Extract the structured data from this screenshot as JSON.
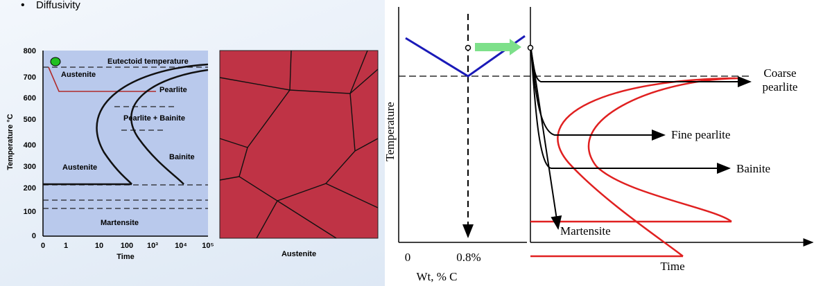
{
  "bullet": "Diffusivity",
  "ttt": {
    "y_label": "Temperature °C",
    "y_ticks": [
      "800",
      "700",
      "600",
      "500",
      "400",
      "300",
      "200",
      "100",
      "0"
    ],
    "x_label": "Time",
    "x_ticks": [
      "0",
      "1",
      "10",
      "100",
      "10³",
      "10⁴",
      "10⁵"
    ],
    "regions": [
      "Eutectoid temperature",
      "Austenite",
      "Pearlite",
      "Pearlite + Bainite",
      "Bainite",
      "Austenite",
      "Martensite"
    ]
  },
  "micrograph": {
    "caption": "Austenite"
  },
  "cct": {
    "y_label": "Temperature",
    "x_ticks": [
      "0",
      "0.8%"
    ],
    "x_label": "Wt, % C",
    "time_label": "Time",
    "products": {
      "coarse_pearlite": [
        "Coarse",
        "pearlite"
      ],
      "fine_pearlite": "Fine pearlite",
      "bainite": "Bainite",
      "martensite": "Martensite"
    }
  }
}
